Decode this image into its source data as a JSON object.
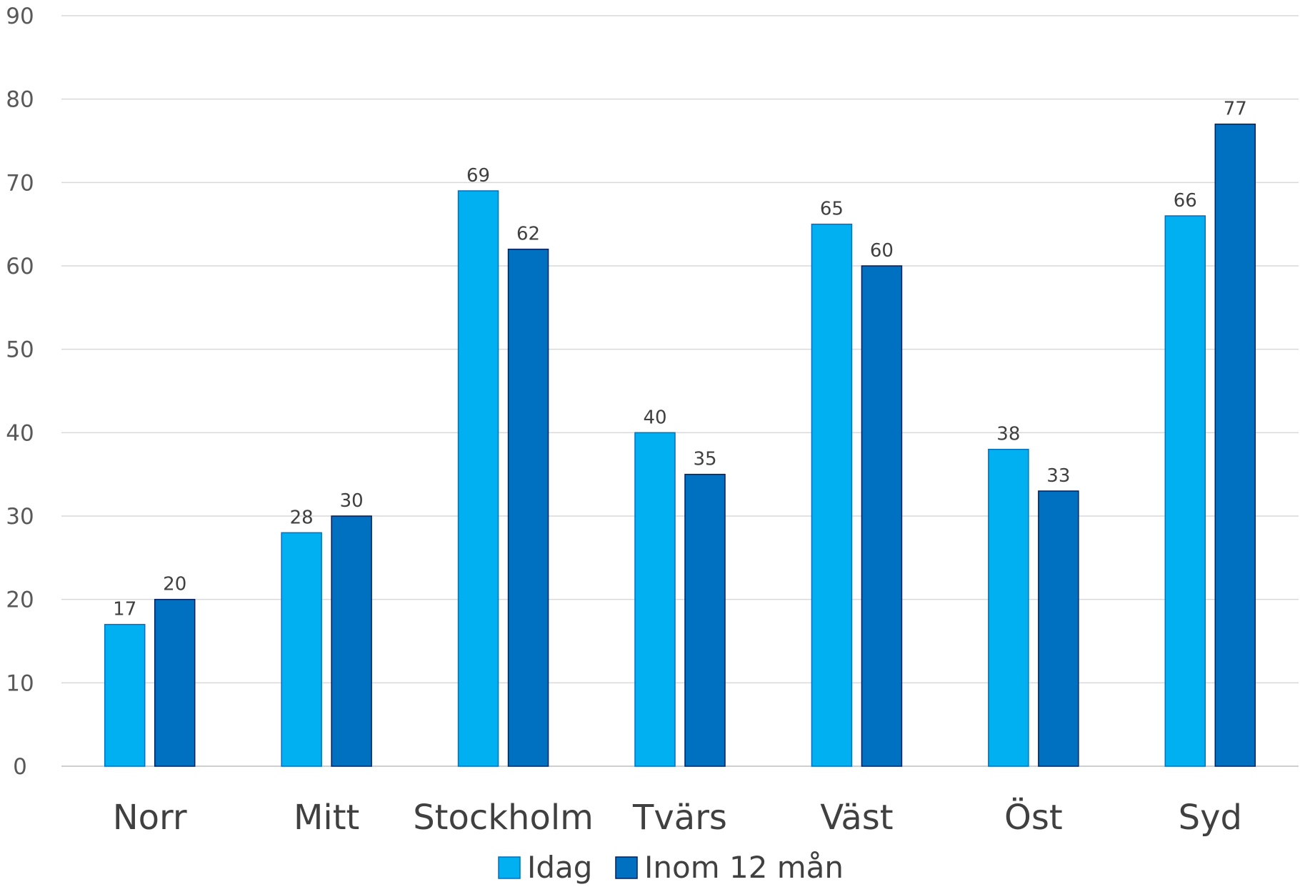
{
  "chart_data": {
    "type": "bar",
    "title": "",
    "xlabel": "",
    "ylabel": "",
    "categories": [
      "Norr",
      "Mitt",
      "Stockholm",
      "Tvärs",
      "Väst",
      "Öst",
      "Syd"
    ],
    "series": [
      {
        "name": "Idag",
        "color": "#00B0F0",
        "edge_color": "#0070C0",
        "values": [
          17,
          28,
          69,
          40,
          65,
          38,
          66
        ]
      },
      {
        "name": "Inom 12 mån",
        "color": "#0070C0",
        "edge_color": "#002060",
        "values": [
          20,
          30,
          62,
          35,
          60,
          33,
          77
        ]
      }
    ],
    "ylim": [
      0,
      90
    ],
    "yticks": [
      0,
      10,
      20,
      30,
      40,
      50,
      60,
      70,
      80,
      90
    ],
    "grid": true,
    "legend_position": "bottom-center",
    "data_labels": true
  }
}
